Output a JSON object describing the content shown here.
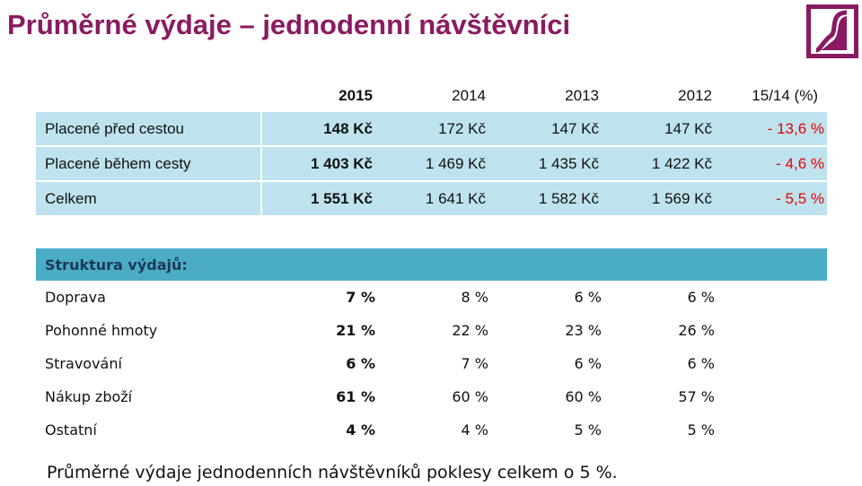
{
  "title": "Průměrné výdaje – jednodenní návštěvníci",
  "logo": "brand-logo",
  "expenses_table": {
    "header": [
      "2015",
      "2014",
      "2013",
      "2012",
      "15/14 (%)"
    ],
    "rows": [
      {
        "label": "Placené před cestou",
        "values": [
          "148 Kč",
          "172 Kč",
          "147 Kč",
          "147 Kč",
          "- 13,6 %"
        ]
      },
      {
        "label": "Placené během cesty",
        "values": [
          "1 403 Kč",
          "1 469 Kč",
          "1 435 Kč",
          "1 422 Kč",
          "- 4,6 %"
        ]
      },
      {
        "label": "Celkem",
        "values": [
          "1 551 Kč",
          "1 641 Kč",
          "1 582 Kč",
          "1 569 Kč",
          "- 5,5 %"
        ]
      }
    ]
  },
  "structure_table": {
    "heading": "Struktura výdajů:",
    "rows": [
      {
        "label": "Doprava",
        "values": [
          "7 %",
          "8 %",
          "6 %",
          "6 %"
        ]
      },
      {
        "label": "Pohonné hmoty",
        "values": [
          "21 %",
          "22 %",
          "23 %",
          "26 %"
        ]
      },
      {
        "label": "Stravování",
        "values": [
          "6 %",
          "7 %",
          "6 %",
          "6 %"
        ]
      },
      {
        "label": "Nákup zboží",
        "values": [
          "61 %",
          "60 %",
          "60 %",
          "57 %"
        ]
      },
      {
        "label": "Ostatní",
        "values": [
          "4 %",
          "4 %",
          "5 %",
          "5 %"
        ]
      }
    ]
  },
  "footnote": "Průměrné výdaje jednodenních návštěvníků poklesy celkem o 5 %.",
  "colors": {
    "title": "#8a1a62",
    "row_fill": "#bfe3ee",
    "accent_fill": "#4bacc6",
    "negative": "#e60000"
  }
}
